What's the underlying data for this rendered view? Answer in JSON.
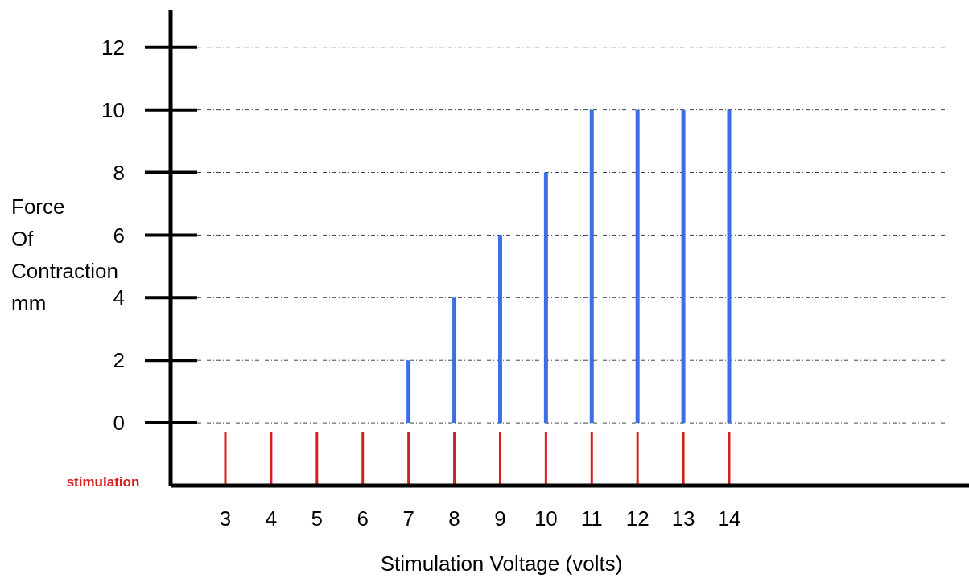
{
  "chart_data": {
    "type": "bar",
    "xlabel": "Stimulation Voltage (volts)",
    "ylabel": "Force\nOf\nContraction\nmm",
    "categories": [
      "3",
      "4",
      "5",
      "6",
      "7",
      "8",
      "9",
      "10",
      "11",
      "12",
      "13",
      "14"
    ],
    "values": [
      0,
      0,
      0,
      0,
      2,
      4,
      6,
      8,
      10,
      10,
      10,
      10
    ],
    "color": "#3b6fe3",
    "ylim": [
      -2,
      13.2
    ],
    "yticks": [
      0,
      2,
      4,
      6,
      8,
      10,
      12
    ],
    "grid": "y",
    "annotations": [
      "stimulation"
    ]
  }
}
